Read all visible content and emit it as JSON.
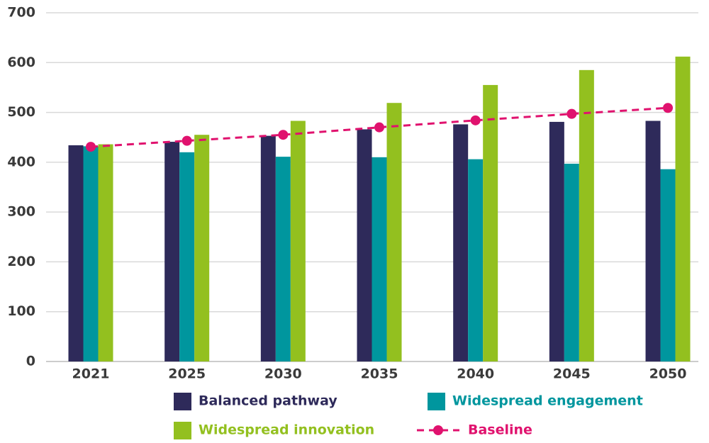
{
  "chart_data": {
    "type": "bar",
    "categories": [
      "2021",
      "2025",
      "2030",
      "2035",
      "2040",
      "2045",
      "2050"
    ],
    "series": [
      {
        "name": "Balanced pathway",
        "color": "#2e2a5a",
        "values": [
          434,
          441,
          453,
          466,
          476,
          481,
          483
        ]
      },
      {
        "name": "Widespread engagement",
        "color": "#00969e",
        "values": [
          432,
          420,
          411,
          410,
          406,
          397,
          386
        ]
      },
      {
        "name": "Widespread innovation",
        "color": "#93c01f",
        "values": [
          436,
          455,
          483,
          519,
          555,
          585,
          612
        ]
      },
      {
        "name": "Baseline",
        "type": "line",
        "color": "#e0126e",
        "line_style": "dashed",
        "marker": "circle",
        "values": [
          431,
          443,
          455,
          470,
          484,
          497,
          509
        ]
      }
    ],
    "ylim": [
      0,
      700
    ],
    "yticks": [
      0,
      100,
      200,
      300,
      400,
      500,
      600,
      700
    ],
    "grid": true,
    "legend": "bottom"
  }
}
